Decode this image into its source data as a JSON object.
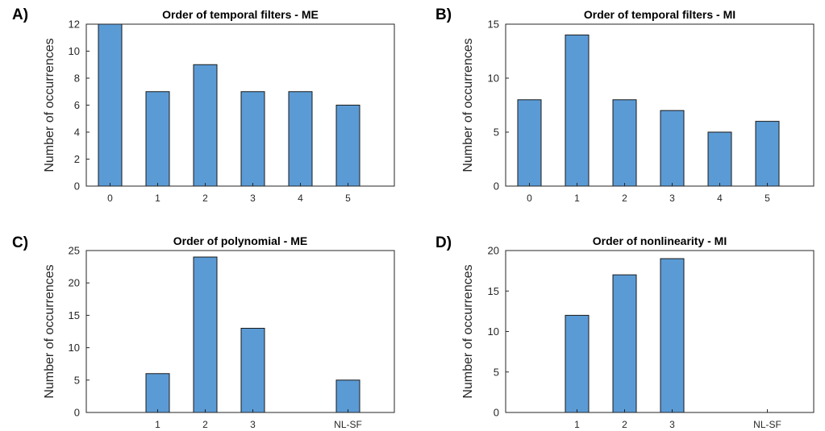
{
  "figure": {
    "bar_color": "#5b9bd5",
    "bar_edge_color": "#1a1a1a",
    "axis_color": "#262626",
    "text_color": "#262626"
  },
  "chart_data": [
    {
      "panel_label": "A)",
      "type": "bar",
      "title": "Order of temporal filters - ME",
      "xlabel": "",
      "ylabel": "Number of occurrences",
      "categories": [
        "0",
        "1",
        "2",
        "3",
        "4",
        "5"
      ],
      "values": [
        12,
        7,
        9,
        7,
        7,
        6
      ],
      "ylim": [
        0,
        12
      ],
      "yticks": [
        0,
        2,
        4,
        6,
        8,
        10,
        12
      ],
      "grid": false
    },
    {
      "panel_label": "B)",
      "type": "bar",
      "title": "Order of temporal filters - MI",
      "xlabel": "",
      "ylabel": "Number of occurrences",
      "categories": [
        "0",
        "1",
        "2",
        "3",
        "4",
        "5"
      ],
      "values": [
        8,
        14,
        8,
        7,
        5,
        6
      ],
      "ylim": [
        0,
        15
      ],
      "yticks": [
        0,
        5,
        10,
        15
      ],
      "grid": false
    },
    {
      "panel_label": "C)",
      "type": "bar",
      "title": "Order of polynomial  - ME",
      "xlabel": "",
      "ylabel": "Number of occurrences",
      "categories": [
        "",
        "1",
        "2",
        "3",
        "",
        "NL-SF"
      ],
      "values": [
        0,
        6,
        24,
        13,
        0,
        5
      ],
      "ylim": [
        0,
        25
      ],
      "yticks": [
        0,
        5,
        10,
        15,
        20,
        25
      ],
      "grid": false
    },
    {
      "panel_label": "D)",
      "type": "bar",
      "title": "Order of nonlinearity  - MI",
      "xlabel": "",
      "ylabel": "Number of occurrences",
      "categories": [
        "",
        "1",
        "2",
        "3",
        "",
        "NL-SF"
      ],
      "values": [
        0,
        12,
        17,
        19,
        0,
        0
      ],
      "ylim": [
        0,
        20
      ],
      "yticks": [
        0,
        5,
        10,
        15,
        20
      ],
      "grid": false
    }
  ]
}
